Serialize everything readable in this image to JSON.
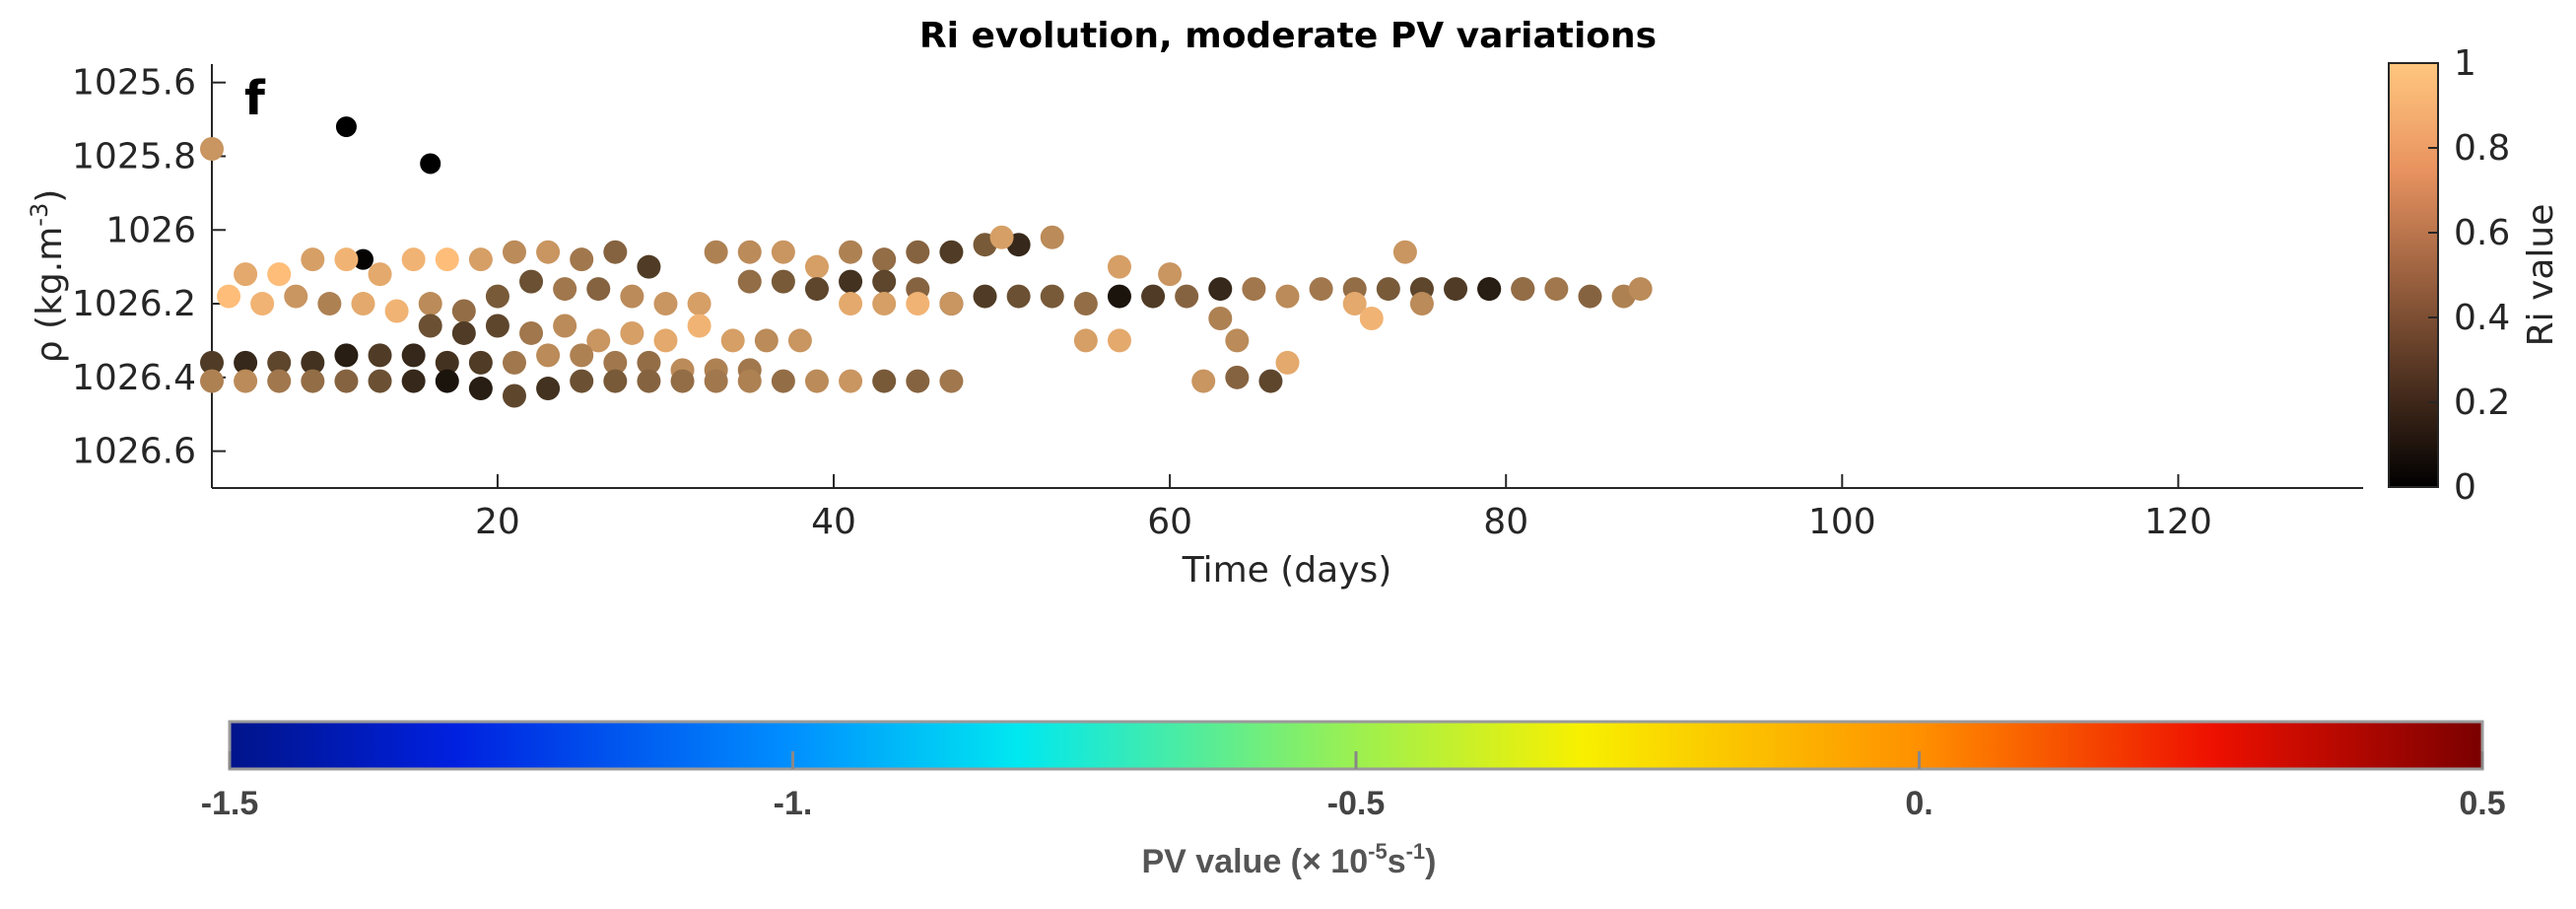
{
  "chart_data": [
    {
      "type": "scatter",
      "title": "Ri evolution,  moderate PV variations",
      "panel_label": "f",
      "xlabel": "Time (days)",
      "ylabel": "ρ (kg.m",
      "ylabel_sup": "-3",
      "ylabel_close": ")",
      "xlim": [
        3,
        131
      ],
      "ylim": [
        1025.55,
        1026.7
      ],
      "y_reversed": true,
      "xticks": [
        20,
        40,
        60,
        80,
        100,
        120
      ],
      "yticks": [
        1025.6,
        1025.8,
        1026,
        1026.2,
        1026.4,
        1026.6
      ],
      "ytick_labels": [
        "1025.6",
        "1025.8",
        "1026",
        "1026.2",
        "1026.4",
        "1026.6"
      ],
      "colorbar": {
        "label": "Ri value",
        "range": [
          0,
          1
        ],
        "ticks": [
          0,
          0.2,
          0.4,
          0.6,
          0.8,
          1
        ],
        "tick_labels": [
          "0",
          "0.2",
          "0.4",
          "0.6",
          "0.8",
          "1"
        ],
        "colormap": "copper"
      },
      "points": [
        [
          3,
          1025.78,
          0.75
        ],
        [
          11,
          1025.72,
          0.0
        ],
        [
          16,
          1025.82,
          0.0
        ],
        [
          12,
          1026.08,
          0.02
        ],
        [
          5,
          1026.12,
          0.85
        ],
        [
          7,
          1026.12,
          0.95
        ],
        [
          9,
          1026.08,
          0.8
        ],
        [
          11,
          1026.08,
          0.9
        ],
        [
          13,
          1026.12,
          0.85
        ],
        [
          15,
          1026.08,
          0.9
        ],
        [
          17,
          1026.08,
          0.95
        ],
        [
          19,
          1026.08,
          0.8
        ],
        [
          21,
          1026.06,
          0.7
        ],
        [
          23,
          1026.06,
          0.75
        ],
        [
          25,
          1026.08,
          0.6
        ],
        [
          27,
          1026.06,
          0.5
        ],
        [
          29,
          1026.1,
          0.3
        ],
        [
          4,
          1026.18,
          0.95
        ],
        [
          6,
          1026.2,
          0.9
        ],
        [
          8,
          1026.18,
          0.75
        ],
        [
          10,
          1026.2,
          0.65
        ],
        [
          12,
          1026.2,
          0.85
        ],
        [
          14,
          1026.22,
          0.9
        ],
        [
          16,
          1026.2,
          0.7
        ],
        [
          18,
          1026.22,
          0.55
        ],
        [
          20,
          1026.18,
          0.45
        ],
        [
          22,
          1026.14,
          0.4
        ],
        [
          24,
          1026.16,
          0.6
        ],
        [
          26,
          1026.16,
          0.5
        ],
        [
          28,
          1026.18,
          0.7
        ],
        [
          30,
          1026.2,
          0.75
        ],
        [
          32,
          1026.2,
          0.8
        ],
        [
          16,
          1026.26,
          0.4
        ],
        [
          18,
          1026.28,
          0.3
        ],
        [
          20,
          1026.26,
          0.35
        ],
        [
          22,
          1026.28,
          0.6
        ],
        [
          24,
          1026.26,
          0.7
        ],
        [
          26,
          1026.3,
          0.75
        ],
        [
          28,
          1026.28,
          0.8
        ],
        [
          30,
          1026.3,
          0.85
        ],
        [
          32,
          1026.26,
          0.9
        ],
        [
          34,
          1026.3,
          0.8
        ],
        [
          36,
          1026.3,
          0.7
        ],
        [
          38,
          1026.3,
          0.75
        ],
        [
          3,
          1026.36,
          0.3
        ],
        [
          5,
          1026.36,
          0.2
        ],
        [
          7,
          1026.36,
          0.35
        ],
        [
          9,
          1026.36,
          0.25
        ],
        [
          11,
          1026.34,
          0.15
        ],
        [
          13,
          1026.34,
          0.3
        ],
        [
          15,
          1026.34,
          0.2
        ],
        [
          17,
          1026.36,
          0.25
        ],
        [
          19,
          1026.36,
          0.3
        ],
        [
          21,
          1026.36,
          0.6
        ],
        [
          23,
          1026.34,
          0.7
        ],
        [
          25,
          1026.34,
          0.65
        ],
        [
          27,
          1026.36,
          0.6
        ],
        [
          29,
          1026.36,
          0.55
        ],
        [
          31,
          1026.38,
          0.7
        ],
        [
          33,
          1026.38,
          0.65
        ],
        [
          35,
          1026.38,
          0.6
        ],
        [
          3,
          1026.41,
          0.65
        ],
        [
          5,
          1026.41,
          0.7
        ],
        [
          7,
          1026.41,
          0.6
        ],
        [
          9,
          1026.41,
          0.55
        ],
        [
          11,
          1026.41,
          0.5
        ],
        [
          13,
          1026.41,
          0.4
        ],
        [
          15,
          1026.41,
          0.2
        ],
        [
          17,
          1026.41,
          0.1
        ],
        [
          19,
          1026.43,
          0.15
        ],
        [
          21,
          1026.45,
          0.35
        ],
        [
          23,
          1026.43,
          0.25
        ],
        [
          25,
          1026.41,
          0.4
        ],
        [
          27,
          1026.41,
          0.45
        ],
        [
          29,
          1026.41,
          0.5
        ],
        [
          31,
          1026.41,
          0.55
        ],
        [
          33,
          1026.41,
          0.6
        ],
        [
          35,
          1026.41,
          0.65
        ],
        [
          37,
          1026.41,
          0.55
        ],
        [
          39,
          1026.41,
          0.7
        ],
        [
          41,
          1026.41,
          0.75
        ],
        [
          43,
          1026.41,
          0.45
        ],
        [
          45,
          1026.41,
          0.5
        ],
        [
          47,
          1026.41,
          0.6
        ],
        [
          33,
          1026.06,
          0.65
        ],
        [
          35,
          1026.06,
          0.7
        ],
        [
          37,
          1026.06,
          0.75
        ],
        [
          39,
          1026.1,
          0.8
        ],
        [
          41,
          1026.06,
          0.65
        ],
        [
          43,
          1026.08,
          0.55
        ],
        [
          45,
          1026.06,
          0.5
        ],
        [
          47,
          1026.06,
          0.3
        ],
        [
          49,
          1026.04,
          0.45
        ],
        [
          51,
          1026.04,
          0.2
        ],
        [
          53,
          1026.02,
          0.7
        ],
        [
          50,
          1026.02,
          0.8
        ],
        [
          35,
          1026.14,
          0.55
        ],
        [
          37,
          1026.14,
          0.45
        ],
        [
          39,
          1026.16,
          0.35
        ],
        [
          41,
          1026.14,
          0.25
        ],
        [
          43,
          1026.14,
          0.35
        ],
        [
          45,
          1026.16,
          0.5
        ],
        [
          47,
          1026.2,
          0.15
        ],
        [
          49,
          1026.18,
          0.3
        ],
        [
          51,
          1026.18,
          0.4
        ],
        [
          53,
          1026.18,
          0.45
        ],
        [
          55,
          1026.2,
          0.55
        ],
        [
          57,
          1026.18,
          0.1
        ],
        [
          59,
          1026.18,
          0.3
        ],
        [
          61,
          1026.18,
          0.5
        ],
        [
          63,
          1026.16,
          0.2
        ],
        [
          65,
          1026.16,
          0.6
        ],
        [
          67,
          1026.18,
          0.7
        ],
        [
          41,
          1026.2,
          0.85
        ],
        [
          43,
          1026.2,
          0.8
        ],
        [
          45,
          1026.2,
          0.9
        ],
        [
          47,
          1026.2,
          0.75
        ],
        [
          55,
          1026.3,
          0.8
        ],
        [
          57,
          1026.3,
          0.85
        ],
        [
          63,
          1026.24,
          0.65
        ],
        [
          62,
          1026.41,
          0.75
        ],
        [
          64,
          1026.4,
          0.5
        ],
        [
          66,
          1026.41,
          0.35
        ],
        [
          67,
          1026.36,
          0.85
        ],
        [
          57,
          1026.1,
          0.8
        ],
        [
          60,
          1026.12,
          0.75
        ],
        [
          64,
          1026.3,
          0.7
        ],
        [
          69,
          1026.16,
          0.6
        ],
        [
          71,
          1026.16,
          0.55
        ],
        [
          73,
          1026.16,
          0.45
        ],
        [
          75,
          1026.16,
          0.35
        ],
        [
          77,
          1026.16,
          0.3
        ],
        [
          79,
          1026.16,
          0.25
        ],
        [
          81,
          1026.16,
          0.4
        ],
        [
          83,
          1026.16,
          0.6
        ],
        [
          85,
          1026.18,
          0.5
        ],
        [
          87,
          1026.18,
          0.65
        ],
        [
          88,
          1026.16,
          0.7
        ],
        [
          71,
          1026.2,
          0.85
        ],
        [
          72,
          1026.24,
          0.9
        ],
        [
          74,
          1026.06,
          0.75
        ],
        [
          75,
          1026.2,
          0.7
        ],
        [
          79,
          1026.16,
          0.15
        ],
        [
          81,
          1026.16,
          0.55
        ]
      ]
    },
    {
      "type": "colorbar",
      "label": "PV value (× 10",
      "label_sup1": "-5",
      "label_mid": "s",
      "label_sup2": "-1",
      "label_close": ")",
      "range": [
        -1.5,
        0.5
      ],
      "ticks": [
        -1.5,
        -1,
        -0.5,
        0,
        0.5
      ],
      "tick_labels": [
        "-1.5",
        "-1.",
        "-0.5",
        "0.",
        "0.5"
      ],
      "colormap": "jet-like"
    }
  ]
}
